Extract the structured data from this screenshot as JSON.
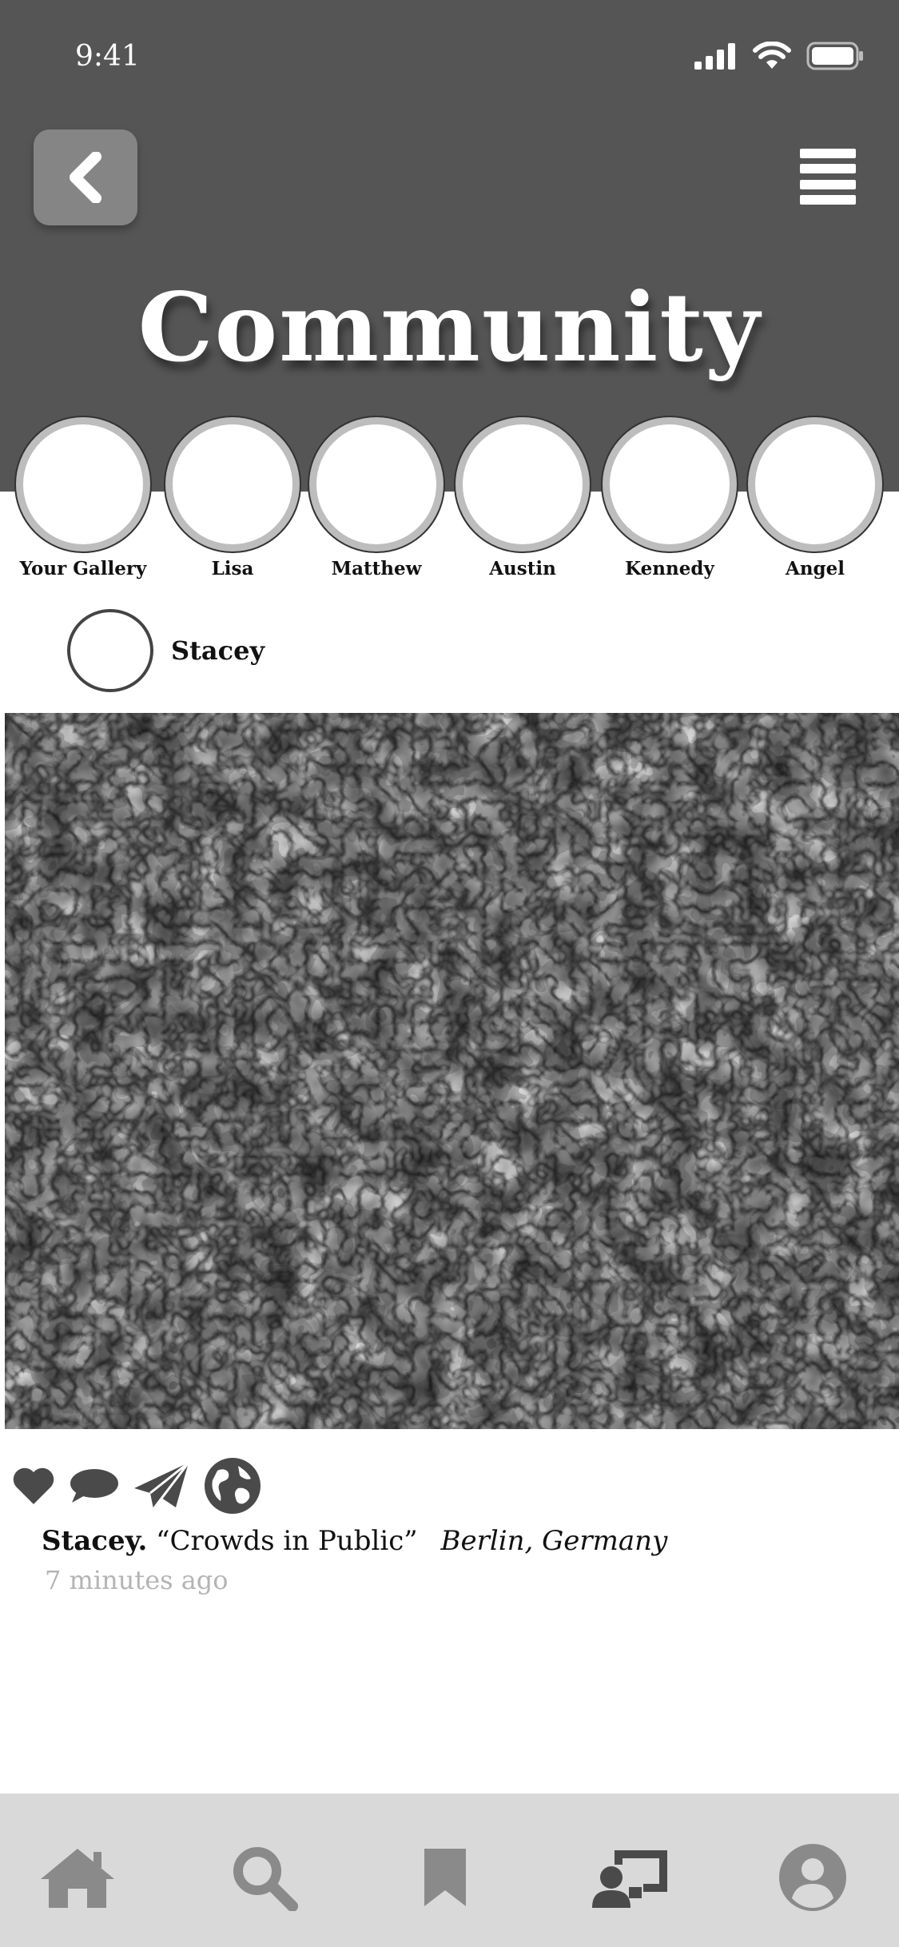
{
  "status_bar": {
    "time": "9:41"
  },
  "header": {
    "title": "Community"
  },
  "stories": [
    {
      "label": "Your Gallery"
    },
    {
      "label": "Lisa"
    },
    {
      "label": "Matthew"
    },
    {
      "label": "Austin"
    },
    {
      "label": "Kennedy"
    },
    {
      "label": "Angel"
    }
  ],
  "post": {
    "author": "Stacey",
    "caption_author": "Stacey.",
    "caption_title": "“Crowds in Public”",
    "location": "Berlin, Germany",
    "timestamp": "7 minutes ago"
  },
  "icons": {
    "back": "chevron-left-icon",
    "menu": "hamburger-menu-icon",
    "like": "heart-icon",
    "comment": "speech-bubble-icon",
    "share": "paper-plane-icon",
    "location": "globe-icon",
    "nav": [
      "home-icon",
      "search-icon",
      "bookmark-icon",
      "community-icon",
      "profile-icon"
    ]
  },
  "colors": {
    "header_bg": "#555555",
    "nav_bg": "#d9d9d9",
    "nav_icon": "#8a8a8a",
    "nav_icon_active": "#4a4a4a",
    "timestamp": "#b4b4b4"
  }
}
